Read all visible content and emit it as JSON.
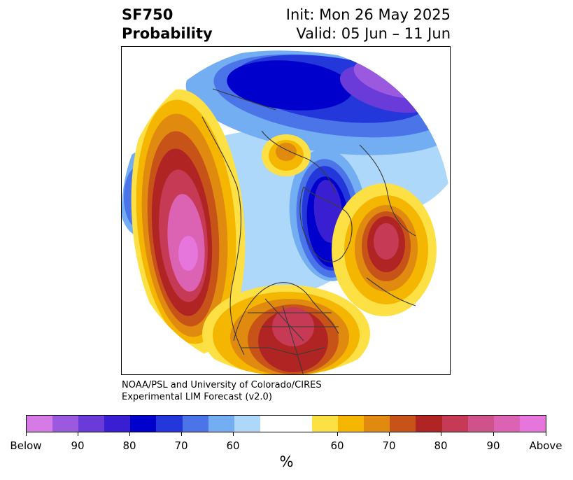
{
  "header": {
    "variable": "SF750",
    "product": "Probability",
    "init": "Init: Mon 26 May 2025",
    "valid": "Valid: 05 Jun – 11 Jun"
  },
  "credit": {
    "line1": "NOAA/PSL and University of Colorado/CIRES",
    "line2": "Experimental LIM Forecast (v2.0)"
  },
  "colorbar": {
    "unit": "%",
    "colors": [
      "#d67be6",
      "#9b59e0",
      "#6a3bd8",
      "#3a1fd2",
      "#0000cc",
      "#2337db",
      "#4a74e8",
      "#73adf2",
      "#aed8fa",
      "#ffffff",
      "#ffffff",
      "#fde044",
      "#f4b600",
      "#e08a10",
      "#c85318",
      "#b12424",
      "#c63a56",
      "#d0528a",
      "#dc62b3",
      "#e676dc"
    ],
    "tick_labels": [
      "Below",
      "90",
      "80",
      "70",
      "60",
      "60",
      "70",
      "80",
      "90",
      "Above"
    ]
  },
  "map": {
    "colors": {
      "above_ext": "#e676dc",
      "above_90": "#dc62b3",
      "above_85": "#c63a56",
      "above_80": "#b12424",
      "above_75": "#c85318",
      "above_70": "#e08a10",
      "above_65": "#f4b600",
      "above_60": "#fde044",
      "below_60": "#aed8fa",
      "below_65": "#73adf2",
      "below_70": "#4a74e8",
      "below_75": "#2337db",
      "below_80": "#0000cc",
      "below_85": "#3a1fd2",
      "below_90": "#6a3bd8",
      "below_ext": "#9b59e0"
    }
  }
}
